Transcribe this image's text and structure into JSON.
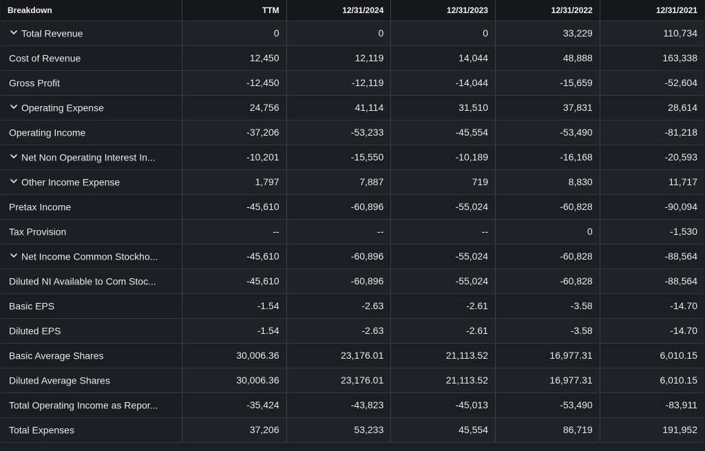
{
  "table": {
    "header": {
      "label": "Breakdown",
      "columns": [
        "TTM",
        "12/31/2024",
        "12/31/2023",
        "12/31/2022",
        "12/31/2021"
      ]
    },
    "rows": [
      {
        "label": "Total Revenue",
        "expandable": true,
        "values": [
          "0",
          "0",
          "0",
          "33,229",
          "110,734"
        ]
      },
      {
        "label": "Cost of Revenue",
        "expandable": false,
        "values": [
          "12,450",
          "12,119",
          "14,044",
          "48,888",
          "163,338"
        ]
      },
      {
        "label": "Gross Profit",
        "expandable": false,
        "values": [
          "-12,450",
          "-12,119",
          "-14,044",
          "-15,659",
          "-52,604"
        ]
      },
      {
        "label": "Operating Expense",
        "expandable": true,
        "values": [
          "24,756",
          "41,114",
          "31,510",
          "37,831",
          "28,614"
        ]
      },
      {
        "label": "Operating Income",
        "expandable": false,
        "values": [
          "-37,206",
          "-53,233",
          "-45,554",
          "-53,490",
          "-81,218"
        ]
      },
      {
        "label": "Net Non Operating Interest In...",
        "expandable": true,
        "values": [
          "-10,201",
          "-15,550",
          "-10,189",
          "-16,168",
          "-20,593"
        ]
      },
      {
        "label": "Other Income Expense",
        "expandable": true,
        "values": [
          "1,797",
          "7,887",
          "719",
          "8,830",
          "11,717"
        ]
      },
      {
        "label": "Pretax Income",
        "expandable": false,
        "values": [
          "-45,610",
          "-60,896",
          "-55,024",
          "-60,828",
          "-90,094"
        ]
      },
      {
        "label": "Tax Provision",
        "expandable": false,
        "values": [
          "--",
          "--",
          "--",
          "0",
          "-1,530"
        ]
      },
      {
        "label": "Net Income Common Stockho...",
        "expandable": true,
        "values": [
          "-45,610",
          "-60,896",
          "-55,024",
          "-60,828",
          "-88,564"
        ]
      },
      {
        "label": "Diluted NI Available to Com Stoc...",
        "expandable": false,
        "values": [
          "-45,610",
          "-60,896",
          "-55,024",
          "-60,828",
          "-88,564"
        ]
      },
      {
        "label": "Basic EPS",
        "expandable": false,
        "values": [
          "-1.54",
          "-2.63",
          "-2.61",
          "-3.58",
          "-14.70"
        ]
      },
      {
        "label": "Diluted EPS",
        "expandable": false,
        "values": [
          "-1.54",
          "-2.63",
          "-2.61",
          "-3.58",
          "-14.70"
        ]
      },
      {
        "label": "Basic Average Shares",
        "expandable": false,
        "values": [
          "30,006.36",
          "23,176.01",
          "21,113.52",
          "16,977.31",
          "6,010.15"
        ]
      },
      {
        "label": "Diluted Average Shares",
        "expandable": false,
        "values": [
          "30,006.36",
          "23,176.01",
          "21,113.52",
          "16,977.31",
          "6,010.15"
        ]
      },
      {
        "label": "Total Operating Income as Repor...",
        "expandable": false,
        "values": [
          "-35,424",
          "-43,823",
          "-45,013",
          "-53,490",
          "-83,911"
        ]
      },
      {
        "label": "Total Expenses",
        "expandable": false,
        "values": [
          "37,206",
          "53,233",
          "45,554",
          "86,719",
          "191,952"
        ]
      }
    ]
  },
  "icons": {
    "expand": "chevron-down-icon"
  },
  "colors": {
    "background": "#1b1e23",
    "header_background": "#15171b",
    "text": "#e8e9ec",
    "grid": "#3a3e45"
  }
}
